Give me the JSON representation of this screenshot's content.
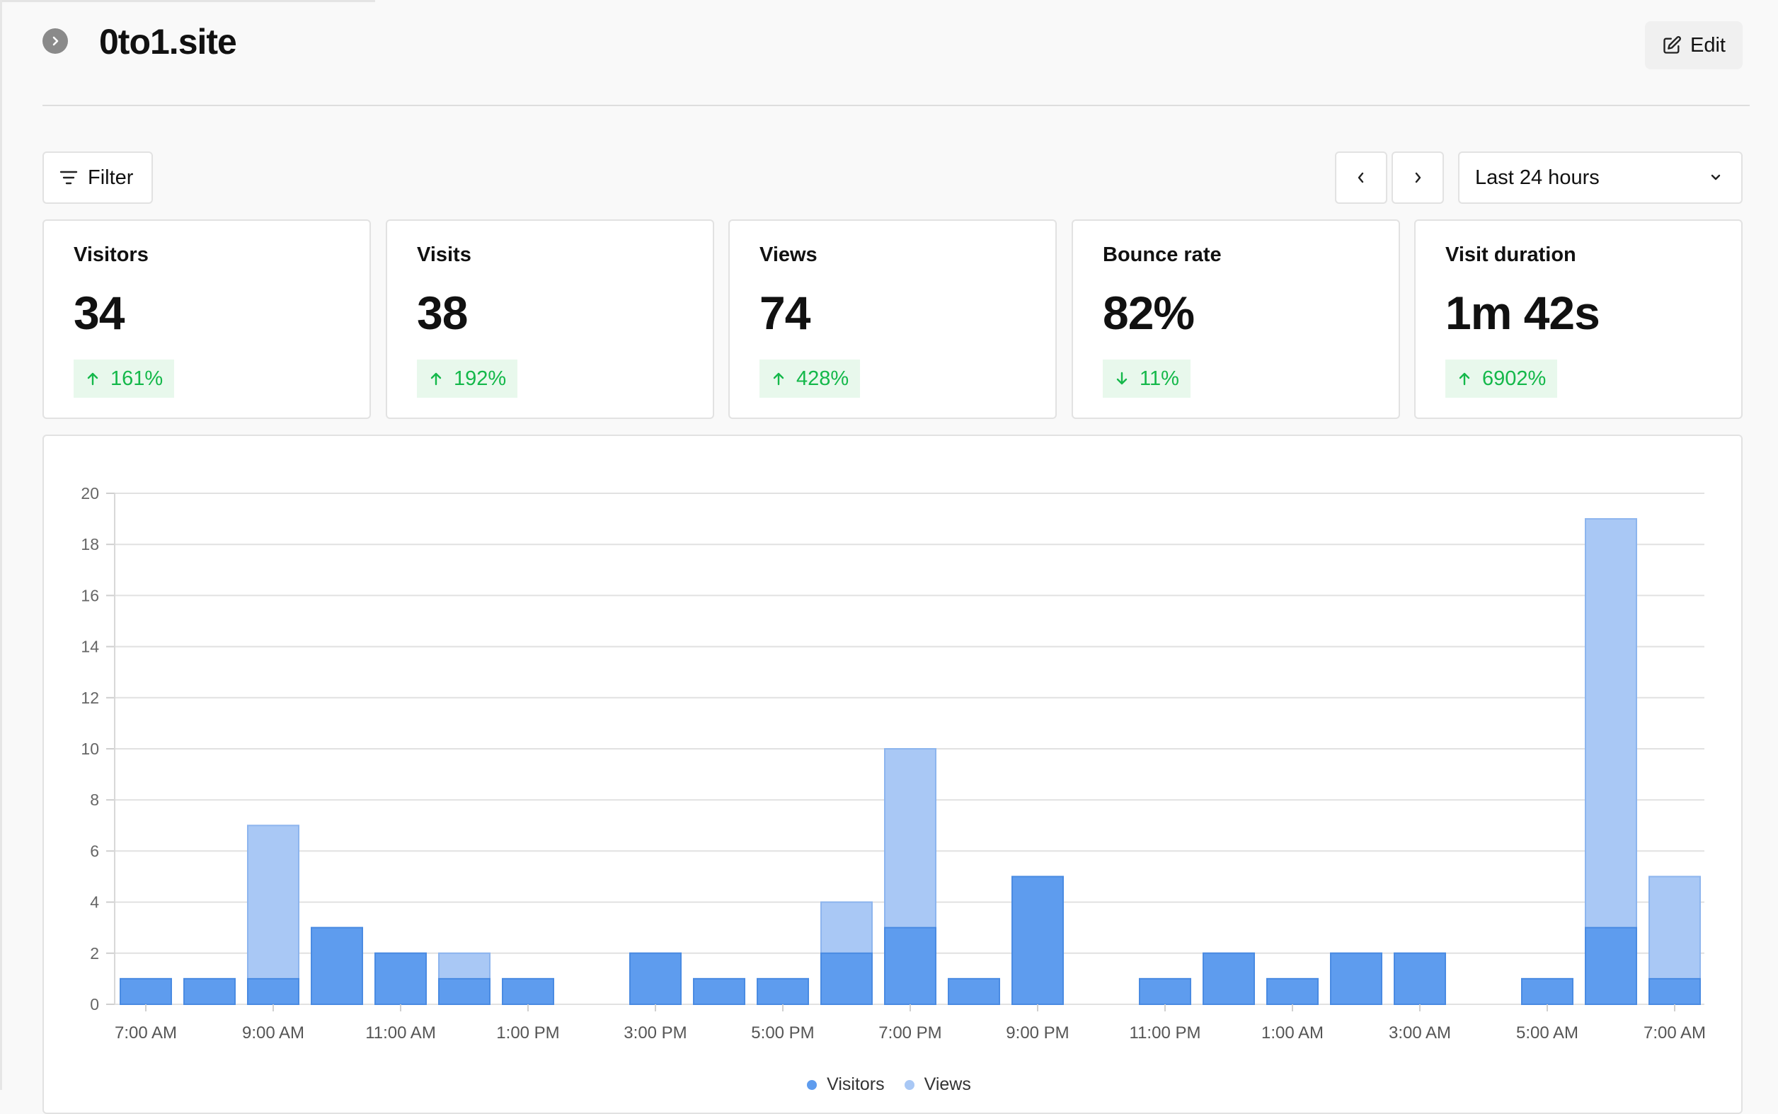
{
  "site": {
    "title": "0to1.site"
  },
  "header": {
    "edit_label": "Edit"
  },
  "toolbar": {
    "filter_label": "Filter",
    "range_label": "Last 24 hours"
  },
  "stats": [
    {
      "label": "Visitors",
      "value": "34",
      "change": "161%",
      "direction": "up"
    },
    {
      "label": "Visits",
      "value": "38",
      "change": "192%",
      "direction": "up"
    },
    {
      "label": "Views",
      "value": "74",
      "change": "428%",
      "direction": "up"
    },
    {
      "label": "Bounce rate",
      "value": "82%",
      "change": "11%",
      "direction": "down"
    },
    {
      "label": "Visit duration",
      "value": "1m 42s",
      "change": "6902%",
      "direction": "up"
    }
  ],
  "colors": {
    "visitors": "#5e9cee",
    "views": "#a9c8f5",
    "positive": "#14b84a"
  },
  "chart_data": {
    "type": "bar",
    "categories": [
      "7:00 AM",
      "8:00 AM",
      "9:00 AM",
      "10:00 AM",
      "11:00 AM",
      "12:00 PM",
      "1:00 PM",
      "2:00 PM",
      "3:00 PM",
      "4:00 PM",
      "5:00 PM",
      "6:00 PM",
      "7:00 PM",
      "8:00 PM",
      "9:00 PM",
      "10:00 PM",
      "11:00 PM",
      "12:00 AM",
      "1:00 AM",
      "2:00 AM",
      "3:00 AM",
      "4:00 AM",
      "5:00 AM",
      "6:00 AM",
      "7:00 AM"
    ],
    "tick_labels": [
      "7:00 AM",
      "9:00 AM",
      "11:00 AM",
      "1:00 PM",
      "3:00 PM",
      "5:00 PM",
      "7:00 PM",
      "9:00 PM",
      "11:00 PM",
      "1:00 AM",
      "3:00 AM",
      "5:00 AM",
      "7:00 AM"
    ],
    "series": [
      {
        "name": "Visitors",
        "values": [
          1,
          1,
          1,
          3,
          2,
          1,
          1,
          0,
          2,
          1,
          1,
          2,
          3,
          1,
          5,
          0,
          1,
          2,
          1,
          2,
          2,
          0,
          1,
          3,
          1
        ]
      },
      {
        "name": "Views",
        "values": [
          1,
          1,
          7,
          3,
          2,
          2,
          1,
          0,
          2,
          1,
          1,
          4,
          10,
          1,
          5,
          0,
          1,
          2,
          1,
          2,
          2,
          0,
          1,
          19,
          5
        ]
      }
    ],
    "ylim": [
      0,
      20
    ],
    "yticks": [
      "0",
      "2",
      "4",
      "6",
      "8",
      "10",
      "12",
      "14",
      "16",
      "18",
      "20"
    ],
    "grid": true,
    "legend": "bottom-center"
  }
}
